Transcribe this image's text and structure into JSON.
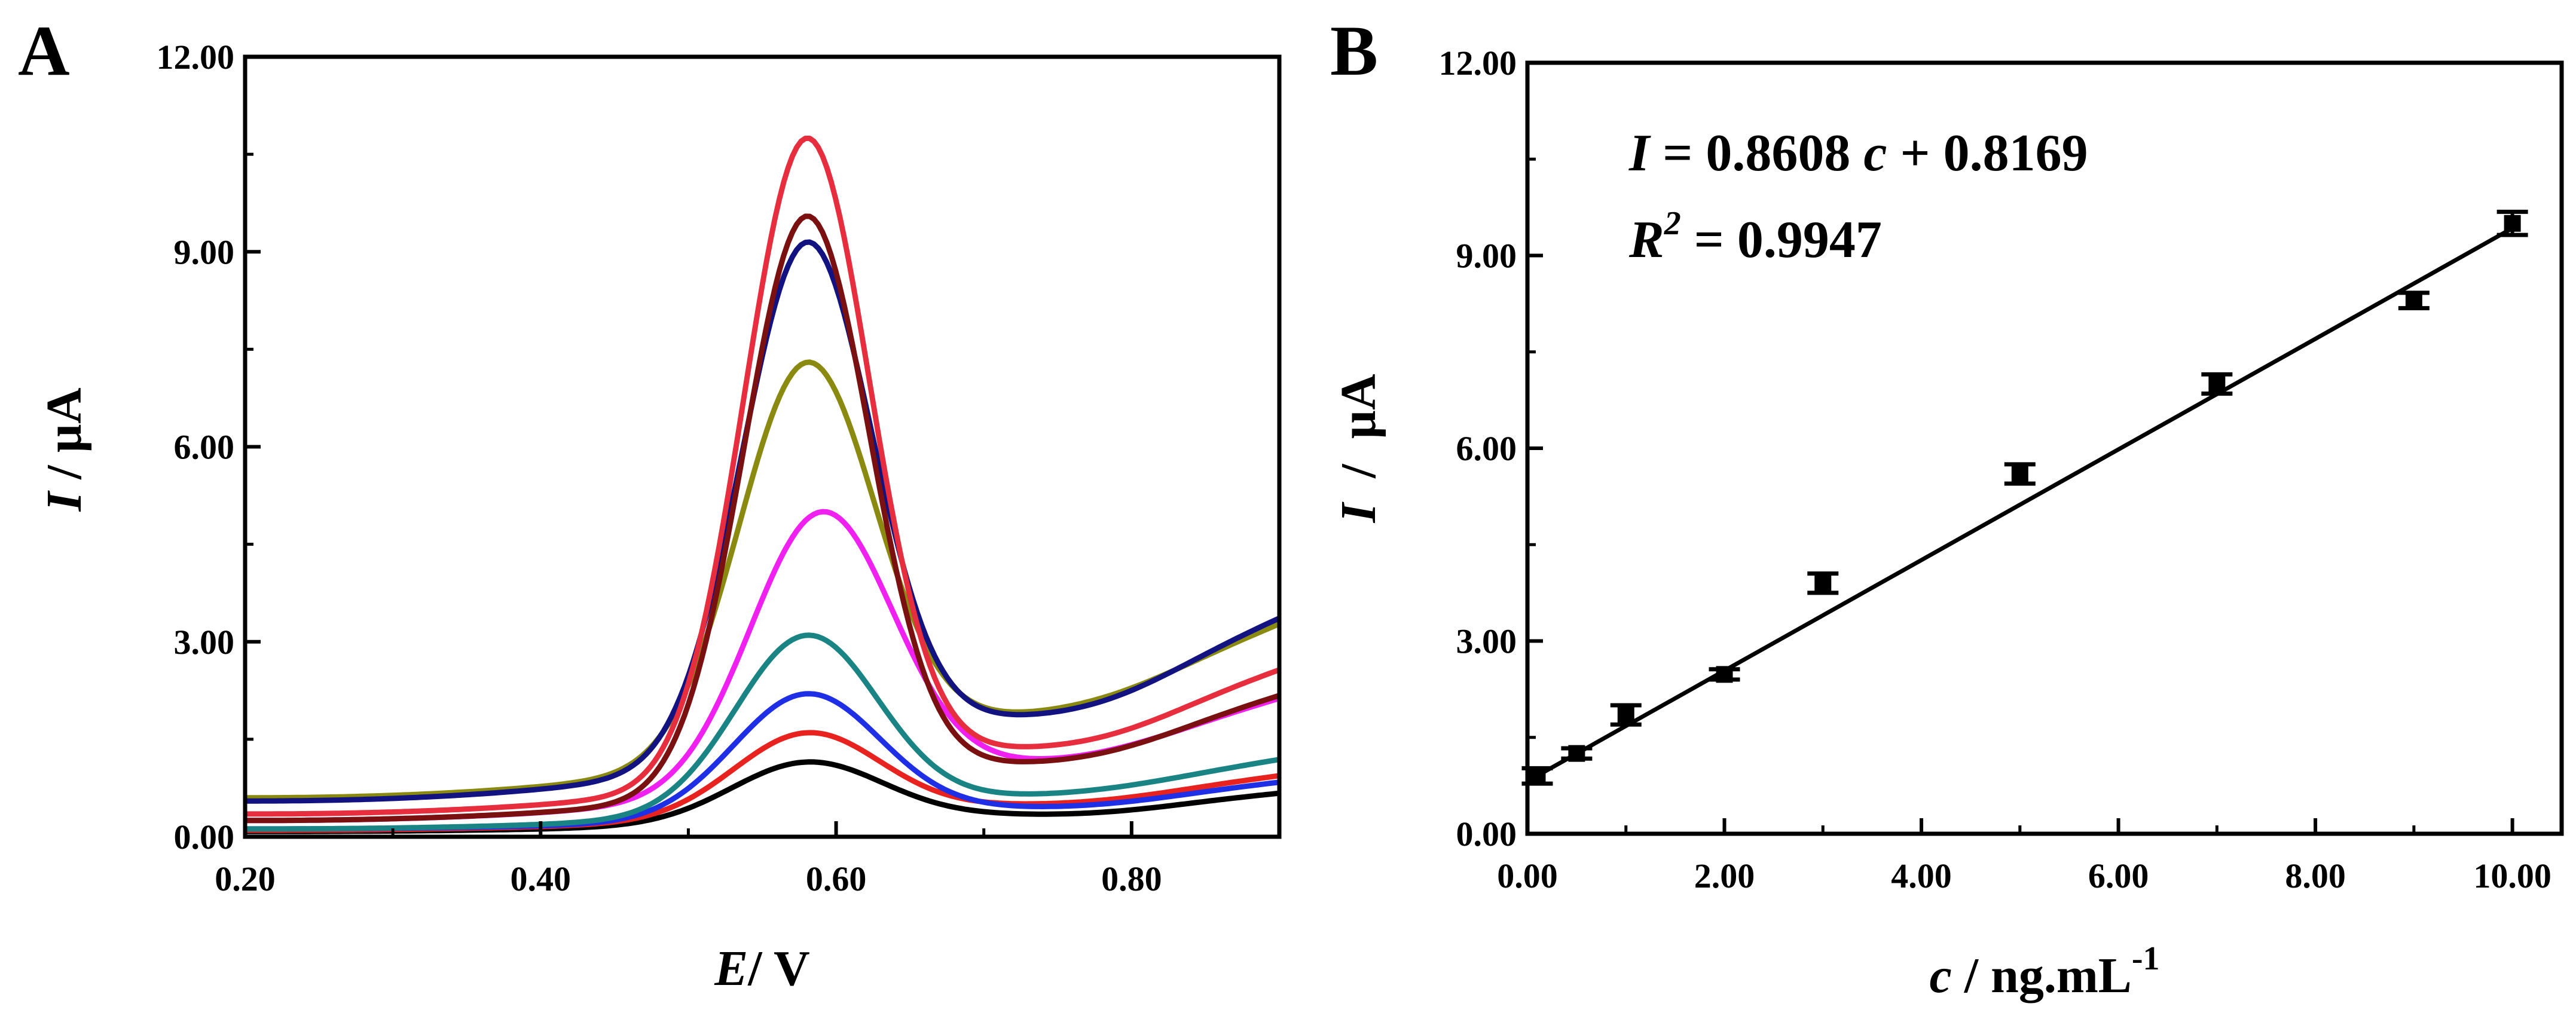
{
  "chart_data": [
    {
      "panel": "A",
      "type": "line",
      "xlabel": {
        "var": "E",
        "unit": "/ V"
      },
      "ylabel": {
        "var": "I",
        "unit": " / µA"
      },
      "xlim": [
        0.2,
        0.9
      ],
      "ylim": [
        0,
        12
      ],
      "x_ticks": [
        0.2,
        0.4,
        0.6,
        0.8
      ],
      "x_tick_labels": [
        "0.20",
        "0.40",
        "0.60",
        "0.80"
      ],
      "y_ticks": [
        0,
        3,
        6,
        9,
        12
      ],
      "y_tick_labels": [
        "0.00",
        "3.00",
        "6.00",
        "9.00",
        "12.00"
      ],
      "series": [
        {
          "name": "curve-black",
          "color": "#000000",
          "base0": 0.08,
          "base1": 0.68,
          "peak": 1.15,
          "center": 0.58,
          "width": 0.072,
          "sag": 0.1
        },
        {
          "name": "curve-red",
          "color": "#e8231f",
          "base0": 0.1,
          "base1": 0.95,
          "peak": 1.6,
          "center": 0.58,
          "width": 0.07,
          "sag": 0.1
        },
        {
          "name": "curve-blue",
          "color": "#1f2fe6",
          "base0": 0.12,
          "base1": 0.85,
          "peak": 2.2,
          "center": 0.58,
          "width": 0.07,
          "sag": 0.1
        },
        {
          "name": "curve-teal",
          "color": "#1a8484",
          "base0": 0.12,
          "base1": 1.2,
          "peak": 3.1,
          "center": 0.58,
          "width": 0.068,
          "sag": 0.1
        },
        {
          "name": "curve-magenta",
          "color": "#f020f0",
          "base0": 0.25,
          "base1": 2.15,
          "peak": 5.0,
          "center": 0.59,
          "width": 0.068,
          "sag": 0.2
        },
        {
          "name": "curve-olive",
          "color": "#8a8a10",
          "base0": 0.6,
          "base1": 3.3,
          "peak": 7.3,
          "center": 0.58,
          "width": 0.065,
          "sag": 0.25
        },
        {
          "name": "curve-navy",
          "color": "#121280",
          "base0": 0.55,
          "base1": 3.4,
          "peak": 9.15,
          "center": 0.58,
          "width": 0.062,
          "sag": 0.35
        },
        {
          "name": "curve-maroon",
          "color": "#7a1010",
          "base0": 0.25,
          "base1": 2.2,
          "peak": 9.55,
          "center": 0.58,
          "width": 0.06,
          "sag": 0.25
        },
        {
          "name": "curve-crimson",
          "color": "#e62e3e",
          "base0": 0.35,
          "base1": 2.6,
          "peak": 10.75,
          "center": 0.58,
          "width": 0.06,
          "sag": 0.3
        }
      ]
    },
    {
      "panel": "B",
      "type": "scatter",
      "xlabel": {
        "var": "c",
        "unit": " / ng.mL",
        "sup": "-1"
      },
      "ylabel": {
        "var": "I",
        "unit": "  /  µA"
      },
      "xlim": [
        0,
        10.5
      ],
      "ylim": [
        0,
        12
      ],
      "x_ticks": [
        0,
        2,
        4,
        6,
        8,
        10
      ],
      "x_tick_labels": [
        "0.00",
        "2.00",
        "4.00",
        "6.00",
        "8.00",
        "10.00"
      ],
      "y_ticks": [
        0,
        3,
        6,
        9,
        12
      ],
      "y_tick_labels": [
        "0.00",
        "3.00",
        "6.00",
        "9.00",
        "12.00"
      ],
      "points": [
        {
          "x": 0.1,
          "y": 0.9,
          "err": 0.12
        },
        {
          "x": 0.5,
          "y": 1.25,
          "err": 0.08
        },
        {
          "x": 1.0,
          "y": 1.85,
          "err": 0.15
        },
        {
          "x": 2.0,
          "y": 2.48,
          "err": 0.08
        },
        {
          "x": 3.0,
          "y": 3.9,
          "err": 0.15
        },
        {
          "x": 5.0,
          "y": 5.6,
          "err": 0.15
        },
        {
          "x": 7.0,
          "y": 7.0,
          "err": 0.15
        },
        {
          "x": 9.0,
          "y": 8.3,
          "err": 0.12
        },
        {
          "x": 10.0,
          "y": 9.5,
          "err": 0.18
        }
      ],
      "fit": {
        "slope": 0.8608,
        "intercept": 0.8169,
        "x_range": [
          0.1,
          10.0
        ]
      },
      "equation": {
        "line1": {
          "var1": "I",
          "mid": " = 0.8608 ",
          "var2": "c",
          "end": " + 0.8169"
        },
        "line2": {
          "var": "R",
          "sup": "2",
          "end": " = 0.9947"
        }
      }
    }
  ]
}
